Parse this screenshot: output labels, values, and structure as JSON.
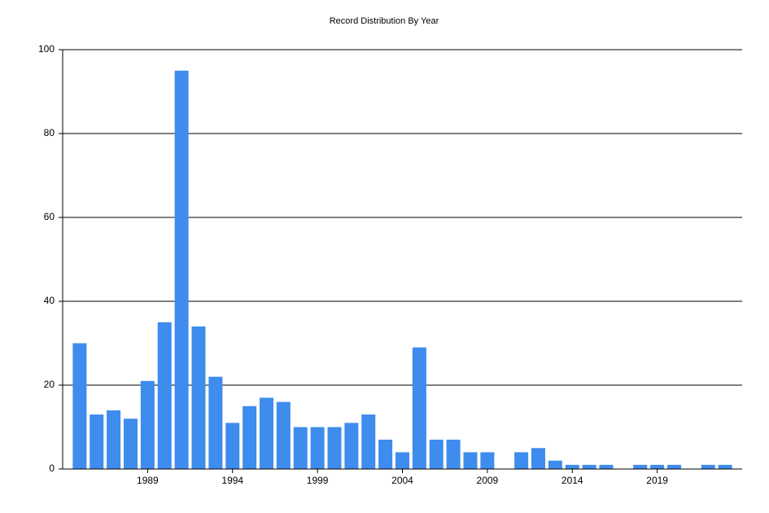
{
  "chart_data": {
    "type": "bar",
    "title": "Record Distribution By Year",
    "categories": [
      null,
      null,
      null,
      null,
      "1989",
      null,
      null,
      null,
      null,
      "1994",
      null,
      null,
      null,
      null,
      "1999",
      null,
      null,
      null,
      null,
      "2004",
      null,
      null,
      null,
      null,
      "2009",
      null,
      null,
      null,
      null,
      "2014",
      null,
      null,
      null,
      null,
      "2019",
      null,
      null,
      null,
      null
    ],
    "values": [
      30,
      13,
      14,
      12,
      21,
      35,
      95,
      34,
      22,
      11,
      15,
      17,
      16,
      10,
      10,
      10,
      11,
      13,
      7,
      4,
      29,
      7,
      7,
      4,
      4,
      0,
      4,
      5,
      2,
      1,
      1,
      1,
      0,
      1,
      1,
      1,
      0,
      1,
      1
    ],
    "color": "#3e8ced",
    "ylim": [
      0,
      100
    ],
    "yticks": [
      0,
      20,
      40,
      60,
      80,
      100
    ],
    "grid": true
  }
}
